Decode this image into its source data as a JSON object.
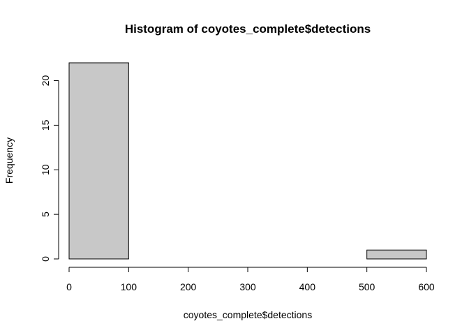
{
  "chart_data": {
    "type": "bar",
    "title": "Histogram of coyotes_complete$detections",
    "xlabel": "coyotes_complete$detections",
    "ylabel": "Frequency",
    "bins": [
      {
        "start": 0,
        "end": 100,
        "count": 22
      },
      {
        "start": 100,
        "end": 200,
        "count": 0
      },
      {
        "start": 200,
        "end": 300,
        "count": 0
      },
      {
        "start": 300,
        "end": 400,
        "count": 0
      },
      {
        "start": 400,
        "end": 500,
        "count": 0
      },
      {
        "start": 500,
        "end": 600,
        "count": 1
      }
    ],
    "xlim": [
      0,
      600
    ],
    "ylim": [
      0,
      22
    ],
    "xticks": [
      0,
      100,
      200,
      300,
      400,
      500,
      600
    ],
    "yticks": [
      0,
      5,
      10,
      15,
      20
    ],
    "grid": false,
    "bar_fill": "#c8c8c8",
    "bar_stroke": "#000000"
  }
}
